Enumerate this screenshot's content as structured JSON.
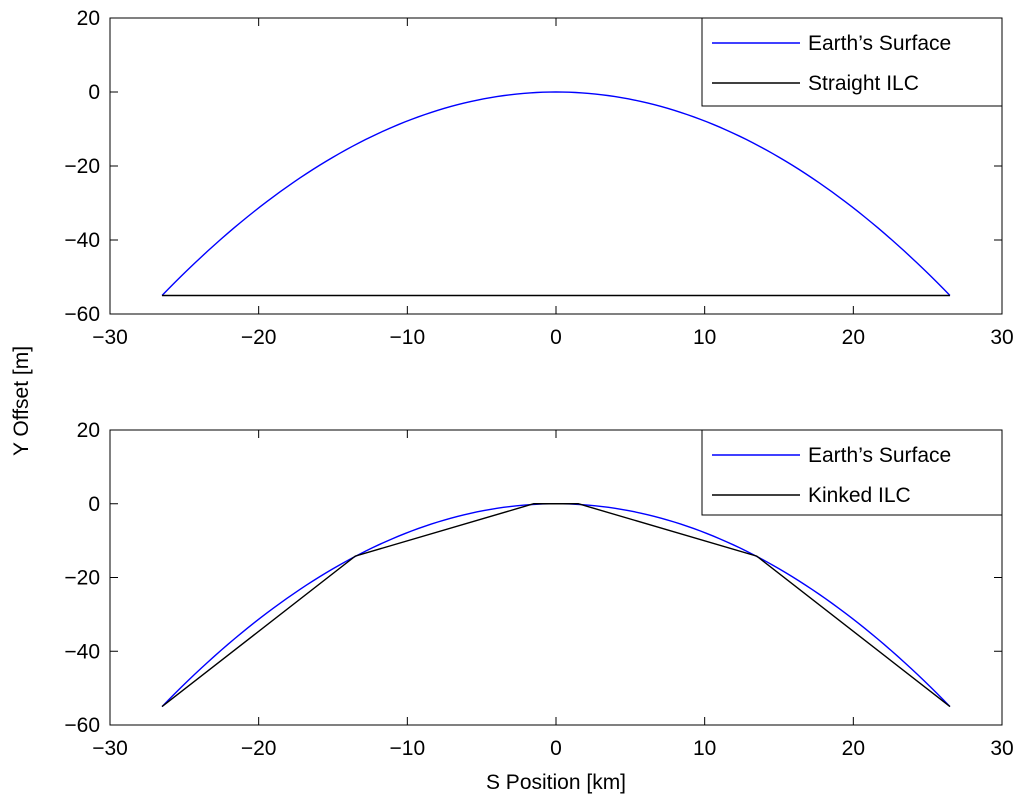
{
  "figure": {
    "ylabel": "Y Offset [m]",
    "xlabel": "S Position [km]"
  },
  "chart_data": [
    {
      "type": "line",
      "xlim": [
        -30,
        30
      ],
      "ylim": [
        -60,
        20
      ],
      "xticks": [
        -30,
        -20,
        -10,
        0,
        10,
        20,
        30
      ],
      "yticks": [
        -60,
        -40,
        -20,
        0,
        20
      ],
      "grid": false,
      "legend_position": "top-right",
      "series": [
        {
          "name": "Earth’s Surface",
          "color": "#0000ff",
          "shape": "parabola",
          "x_range": [
            -26.5,
            26.5
          ],
          "peak": [
            0,
            0
          ],
          "endpoint_y": -55
        },
        {
          "name": "Straight ILC",
          "color": "#000000",
          "x": [
            -26.5,
            26.5
          ],
          "y": [
            -55,
            -55
          ]
        }
      ]
    },
    {
      "type": "line",
      "xlim": [
        -30,
        30
      ],
      "ylim": [
        -60,
        20
      ],
      "xticks": [
        -30,
        -20,
        -10,
        0,
        10,
        20,
        30
      ],
      "yticks": [
        -60,
        -40,
        -20,
        0,
        20
      ],
      "grid": false,
      "legend_position": "top-right",
      "series": [
        {
          "name": "Earth’s Surface",
          "color": "#0000ff",
          "shape": "parabola",
          "x_range": [
            -26.5,
            26.5
          ],
          "peak": [
            0,
            0
          ],
          "endpoint_y": -55
        },
        {
          "name": "Kinked ILC",
          "color": "#000000",
          "x": [
            -26.5,
            -13.5,
            -1.5,
            1.5,
            13.5,
            26.5
          ],
          "y": [
            -55,
            -14.2,
            0,
            0,
            -14.2,
            -55
          ]
        }
      ]
    }
  ]
}
